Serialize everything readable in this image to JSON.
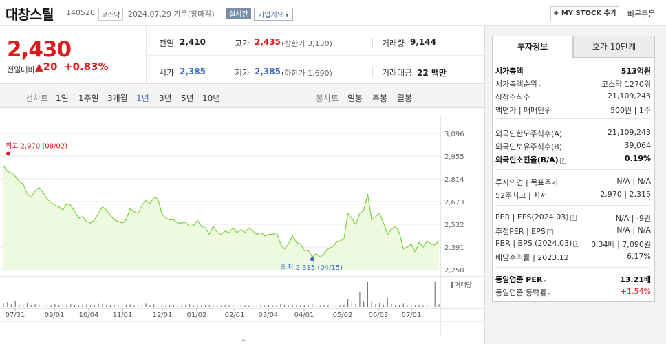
{
  "header": {
    "stock_name": "대창스틸",
    "stock_code": "140520",
    "market": "코스닥",
    "date": "2024.07.29 기준(장마감)",
    "realtime": "실시간",
    "company_info": "기업개요 ▾",
    "mystock_button": "+ MY STOCK 추가",
    "quick_order": "빠른주문"
  },
  "price": {
    "current": "2,430",
    "change_label": "전일대비",
    "change_amount": "▲20",
    "change_rate": "+0.83%"
  },
  "summary": {
    "prev_close_label": "전일",
    "prev_close": "2,410",
    "high_label": "고가",
    "high": "2,435",
    "upper_limit": "(상한가 3,130)",
    "volume_label": "거래량",
    "volume": "9,144",
    "open_label": "시가",
    "open": "2,385",
    "low_label": "저가",
    "low": "2,385",
    "lower_limit": "(하한가 1,690)",
    "amount_label": "거래대금",
    "amount": "22 백만"
  },
  "periods": {
    "line_label": "선차트",
    "line_tabs": [
      "1일",
      "1주일",
      "3개월",
      "1년",
      "3년",
      "5년",
      "10년"
    ],
    "active": "1년",
    "candle_label": "봉차트",
    "candle_tabs": [
      "일봉",
      "주봉",
      "월봉"
    ]
  },
  "chart_data": {
    "type": "area",
    "series": [
      {
        "values": [
          2895,
          2860,
          2850,
          2830,
          2800,
          2780,
          2720,
          2700,
          2740,
          2760,
          2730,
          2690,
          2670,
          2650,
          2640,
          2620,
          2660,
          2650,
          2610,
          2570,
          2580,
          2550,
          2540,
          2560,
          2600,
          2640,
          2620,
          2590,
          2560,
          2550,
          2540,
          2560,
          2630,
          2610,
          2600,
          2650,
          2680,
          2660,
          2700,
          2690,
          2600,
          2570,
          2560,
          2560,
          2540,
          2540,
          2545,
          2520,
          2525,
          2555,
          2520,
          2510,
          2470,
          2520,
          2480,
          2470,
          2490,
          2480,
          2510,
          2480,
          2500,
          2480,
          2510,
          2490,
          2470,
          2480,
          2460,
          2470,
          2470,
          2480,
          2410,
          2380,
          2410,
          2460,
          2420,
          2410,
          2370,
          2370,
          2330,
          2350,
          2330,
          2350,
          2380,
          2390,
          2420,
          2430,
          2440,
          2600,
          2570,
          2530,
          2600,
          2620,
          2720,
          2560,
          2580,
          2600,
          2540,
          2470,
          2500,
          2520,
          2480,
          2380,
          2390,
          2410,
          2360,
          2420,
          2390,
          2430,
          2410,
          2405,
          2430
        ]
      }
    ],
    "x_ticks": [
      "07/31",
      "09/01",
      "10/04",
      "11/01",
      "12/01",
      "01/02",
      "02/01",
      "03/04",
      "04/01",
      "05/02",
      "06/03",
      "07/01"
    ],
    "y_ticks": [
      "3,096",
      "2,955",
      "2,814",
      "2,673",
      "2,532",
      "2,391",
      "2,250"
    ],
    "ylim": [
      2250,
      3096
    ],
    "high_annotation": "최고 2,970 (08/02)",
    "high_value": 2970,
    "low_annotation": "최저 2,315 (04/15)",
    "low_value": 2315,
    "volume_label": "거래량",
    "volume_series": [
      0.12,
      0.18,
      0.1,
      0.22,
      0.08,
      0.05,
      0.15,
      0.07,
      0.1,
      0.09,
      0.06,
      0.08,
      0.05,
      0.11,
      0.07,
      0.04,
      0.06,
      0.1,
      0.05,
      0.04,
      0.06,
      0.09,
      0.05,
      0.06,
      0.12,
      0.1,
      0.04,
      0.05,
      0.07,
      0.06,
      0.04,
      0.05,
      0.1,
      0.05,
      0.06,
      0.09,
      0.12,
      0.07,
      0.1,
      0.08,
      0.05,
      0.04,
      0.06,
      0.05,
      0.07,
      0.04,
      0.05,
      0.1,
      0.05,
      0.06,
      0.04,
      0.05,
      0.08,
      0.04,
      0.05,
      0.04,
      0.06,
      0.04,
      0.05,
      0.04,
      0.09,
      0.05,
      0.04,
      0.06,
      0.04,
      0.05,
      0.04,
      0.06,
      0.04,
      0.05,
      0.1,
      0.06,
      0.04,
      0.07,
      0.05,
      0.04,
      0.06,
      0.05,
      0.1,
      0.05,
      0.04,
      0.06,
      0.05,
      0.04,
      0.07,
      0.06,
      0.08,
      0.3,
      0.25,
      0.12,
      0.55,
      0.2,
      0.95,
      0.2,
      0.1,
      0.15,
      0.08,
      0.35,
      0.1,
      0.05,
      0.06,
      0.12,
      0.05,
      0.08,
      0.05,
      0.06,
      0.04,
      0.05,
      0.04,
      0.95,
      0.1
    ]
  },
  "info": {
    "tab_invest": "투자정보",
    "tab_orderbook": "호가 10단계",
    "rows": [
      {
        "label": "시가총액",
        "value": "513억원",
        "bold": true
      },
      {
        "label": "시가총액순위",
        "value": "코스닥 1270위"
      },
      {
        "label": "상장주식수",
        "value": "21,109,243"
      },
      {
        "label": "액면가 | 매매단위",
        "value": "500원 | 1주"
      },
      {
        "label": "외국인한도주식수(A)",
        "value": "21,109,243"
      },
      {
        "label": "외국인보유주식수(B)",
        "value": "39,064"
      },
      {
        "label": "외국인소진율(B/A)",
        "value": "0.19%",
        "bold": true
      },
      {
        "label": "투자의견 | 목표주가",
        "value": "N/A | N/A"
      },
      {
        "label": "52주최고 | 최저",
        "value": "2,970 | 2,315"
      },
      {
        "label": "PER | EPS(2024.03)",
        "value": "N/A | -9원"
      },
      {
        "label": "추정PER | EPS",
        "value": "N/A | N/A"
      },
      {
        "label": "PBR | BPS (2024.03)",
        "value": "0.34배 | 7,090원"
      },
      {
        "label": "배당수익률 | 2023.12",
        "value": "6.17%"
      },
      {
        "label": "동일업종 PER",
        "value": "13.21배",
        "bold": true
      },
      {
        "label": "동일업종 등락률",
        "value": "+1.54%",
        "red": true
      }
    ]
  },
  "collapse": "︿"
}
